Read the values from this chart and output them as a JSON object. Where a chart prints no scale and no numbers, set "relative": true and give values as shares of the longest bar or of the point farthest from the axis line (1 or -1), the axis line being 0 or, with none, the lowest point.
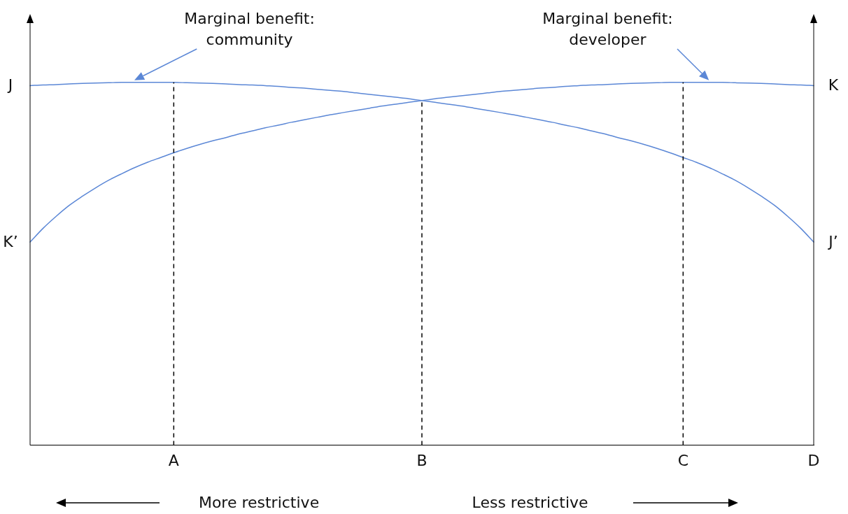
{
  "chart_data": {
    "type": "line",
    "relative": true,
    "marker": "none",
    "line_style": "solid",
    "grid": false,
    "legend": false,
    "categories": [
      null,
      null,
      null,
      null,
      null,
      null,
      null,
      null,
      null,
      null,
      null,
      "A",
      null,
      null,
      null,
      null,
      null,
      null,
      null,
      null,
      null,
      null,
      null,
      null,
      null,
      null,
      null,
      null,
      null,
      null,
      "B",
      null,
      null,
      null,
      null,
      null,
      null,
      null,
      null,
      null,
      null,
      null,
      null,
      null,
      null,
      null,
      null,
      null,
      null,
      null,
      "C",
      null,
      null,
      null,
      null,
      null,
      null,
      null,
      null,
      null,
      "D"
    ],
    "series": [
      {
        "name": "Marginal benefit: community",
        "color": "#5b87d6",
        "values": [
          0.991,
          0.993,
          0.994,
          0.996,
          0.997,
          0.998,
          0.999,
          1.0,
          1.0,
          1.0,
          1.0,
          1.0,
          0.999,
          0.998,
          0.997,
          0.996,
          0.994,
          0.993,
          0.991,
          0.989,
          0.986,
          0.984,
          0.981,
          0.978,
          0.975,
          0.971,
          0.967,
          0.963,
          0.959,
          0.955,
          0.95,
          0.945,
          0.94,
          0.935,
          0.929,
          0.923,
          0.917,
          0.911,
          0.904,
          0.897,
          0.89,
          0.882,
          0.875,
          0.866,
          0.858,
          0.848,
          0.839,
          0.829,
          0.818,
          0.806,
          0.793,
          0.78,
          0.765,
          0.748,
          0.73,
          0.709,
          0.686,
          0.661,
          0.631,
          0.598,
          0.56
        ]
      },
      {
        "name": "Marginal benefit: developer",
        "color": "#5b87d6",
        "values": [
          0.56,
          0.598,
          0.631,
          0.661,
          0.686,
          0.709,
          0.73,
          0.748,
          0.765,
          0.78,
          0.793,
          0.806,
          0.818,
          0.829,
          0.839,
          0.848,
          0.858,
          0.866,
          0.875,
          0.882,
          0.89,
          0.897,
          0.904,
          0.911,
          0.917,
          0.923,
          0.929,
          0.935,
          0.94,
          0.945,
          0.95,
          0.955,
          0.959,
          0.963,
          0.967,
          0.971,
          0.975,
          0.978,
          0.981,
          0.984,
          0.986,
          0.989,
          0.991,
          0.993,
          0.994,
          0.996,
          0.997,
          0.998,
          0.999,
          1.0,
          1.0,
          1.0,
          1.0,
          1.0,
          0.999,
          0.998,
          0.997,
          0.996,
          0.994,
          0.993,
          0.991
        ]
      }
    ],
    "ref_lines": [
      {
        "axis": "x",
        "value": "A",
        "color": "#000000",
        "line_style": "dashed"
      },
      {
        "axis": "x",
        "value": "B",
        "color": "#000000",
        "line_style": "dashed"
      },
      {
        "axis": "x",
        "value": "C",
        "color": "#000000",
        "line_style": "dashed"
      }
    ],
    "annotations": [
      "J",
      "K’",
      "K",
      "J’",
      "More restrictive",
      "Less restrictive"
    ]
  }
}
